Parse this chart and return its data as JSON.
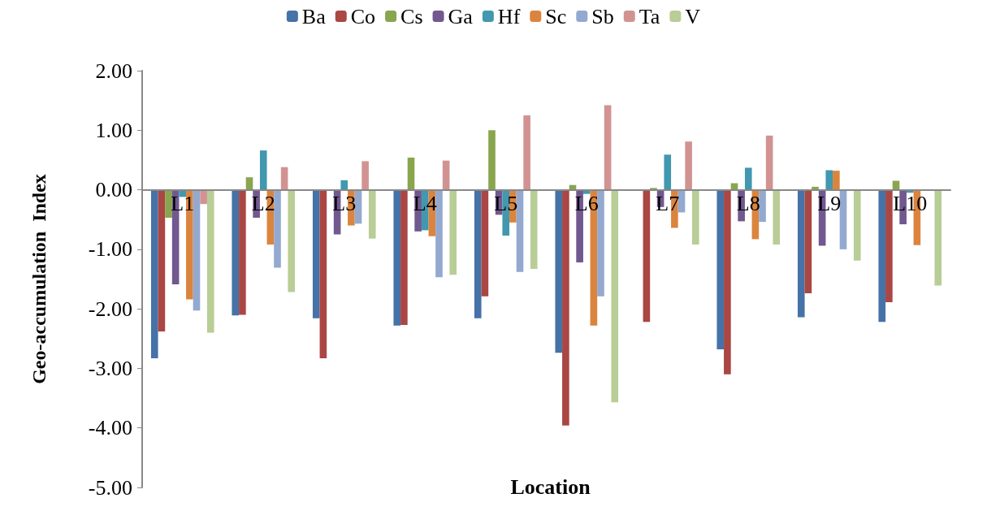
{
  "chart_data": {
    "type": "bar",
    "xlabel": "Location",
    "ylabel": "Geo-accumulation  Index",
    "categories": [
      "L1",
      "L2",
      "L3",
      "L4",
      "L5",
      "L6",
      "L7",
      "L8",
      "L9",
      "L10"
    ],
    "ylim": [
      -5,
      2
    ],
    "yticks": [
      {
        "value": -5,
        "label": "-5.00"
      },
      {
        "value": -4,
        "label": "-4.00"
      },
      {
        "value": -3,
        "label": "-3.00"
      },
      {
        "value": -2,
        "label": "-2.00"
      },
      {
        "value": -1,
        "label": "-1.00"
      },
      {
        "value": 0,
        "label": "0.00"
      },
      {
        "value": 1,
        "label": "1.00"
      },
      {
        "value": 2,
        "label": "2.00"
      }
    ],
    "grid": false,
    "legend": "top",
    "series": [
      {
        "name": "Ba",
        "color": "#4572a7",
        "values": [
          -2.83,
          -2.11,
          -2.16,
          -2.28,
          -2.16,
          -2.74,
          null,
          -2.68,
          -2.14,
          -2.22
        ]
      },
      {
        "name": "Co",
        "color": "#aa4643",
        "values": [
          -2.38,
          -2.1,
          -2.83,
          -2.27,
          -1.79,
          -3.96,
          -2.22,
          -3.1,
          -1.74,
          -1.89
        ]
      },
      {
        "name": "Cs",
        "color": "#89a54e",
        "values": [
          -0.47,
          0.21,
          null,
          0.54,
          1.0,
          0.08,
          0.03,
          0.11,
          0.05,
          0.15
        ]
      },
      {
        "name": "Ga",
        "color": "#71588f",
        "values": [
          -1.59,
          -0.47,
          -0.75,
          -0.7,
          -0.42,
          -1.22,
          -0.29,
          -0.53,
          -0.94,
          -0.58
        ]
      },
      {
        "name": "Hf",
        "color": "#4198af",
        "values": [
          -0.12,
          0.66,
          0.16,
          -0.68,
          -0.77,
          -0.07,
          0.59,
          0.37,
          0.33,
          -0.05
        ]
      },
      {
        "name": "Sc",
        "color": "#db843d",
        "values": [
          -1.84,
          -0.92,
          -0.6,
          -0.78,
          -0.55,
          -2.28,
          -0.64,
          -0.83,
          0.32,
          -0.93
        ]
      },
      {
        "name": "Sb",
        "color": "#93a9cf",
        "values": [
          -2.03,
          -1.31,
          -0.57,
          -1.47,
          -1.38,
          -1.79,
          -0.38,
          -0.54,
          -1.0,
          null
        ]
      },
      {
        "name": "Ta",
        "color": "#d19392",
        "values": [
          -0.24,
          0.38,
          0.48,
          0.49,
          1.25,
          1.42,
          0.81,
          0.91,
          null,
          null
        ]
      },
      {
        "name": "V",
        "color": "#b9cd96",
        "values": [
          -2.4,
          -1.72,
          -0.82,
          -1.43,
          -1.33,
          -3.57,
          -0.92,
          -0.92,
          -1.19,
          -1.61
        ]
      }
    ]
  }
}
